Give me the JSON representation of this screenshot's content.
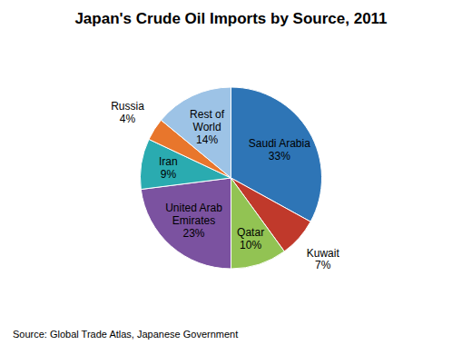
{
  "chart_data": {
    "type": "pie",
    "title": "Japan's Crude Oil Imports by Source, 2011",
    "categories": [
      "Saudi Arabia",
      "Kuwait",
      "Qatar",
      "United Arab\nEmirates",
      "Iran",
      "Russia",
      "Rest of\nWorld"
    ],
    "values": [
      33,
      7,
      10,
      23,
      9,
      4,
      14
    ],
    "value_labels": [
      "33%",
      "7%",
      "10%",
      "23%",
      "9%",
      "4%",
      "14%"
    ],
    "colors": [
      "#2E75B6",
      "#C0392B",
      "#92C353",
      "#7B52A0",
      "#2AABB0",
      "#E8762C",
      "#9DC3E6"
    ],
    "data_labels": true,
    "annotations": [
      "Source: Global Trade Atlas, Japanese Government"
    ]
  }
}
